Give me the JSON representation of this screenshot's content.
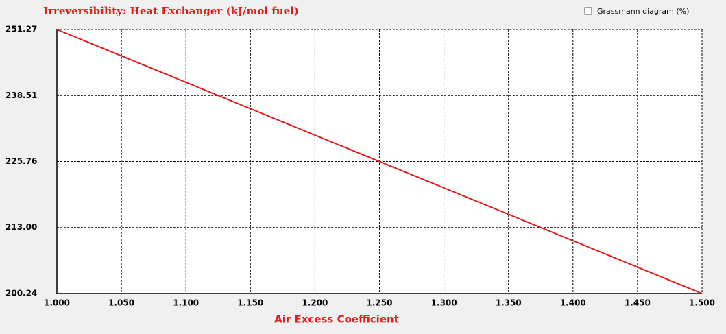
{
  "chart_data": {
    "type": "line",
    "title": "Irreversibility: Heat Exchanger (kJ/mol fuel)",
    "x_label": "Air Excess Coefficient",
    "x": [
      1.0,
      1.5
    ],
    "values": [
      251.27,
      200.24
    ],
    "color": "#e31b1b",
    "xlim": [
      1.0,
      1.5
    ],
    "ylim": [
      200.24,
      251.27
    ],
    "xticks": [
      {
        "value": 1.0,
        "label": "1.000"
      },
      {
        "value": 1.05,
        "label": "1.050"
      },
      {
        "value": 1.1,
        "label": "1.100"
      },
      {
        "value": 1.15,
        "label": "1.150"
      },
      {
        "value": 1.2,
        "label": "1.200"
      },
      {
        "value": 1.25,
        "label": "1.250"
      },
      {
        "value": 1.3,
        "label": "1.300"
      },
      {
        "value": 1.35,
        "label": "1.350"
      },
      {
        "value": 1.4,
        "label": "1.400"
      },
      {
        "value": 1.45,
        "label": "1.450"
      },
      {
        "value": 1.5,
        "label": "1.500"
      }
    ],
    "yticks": [
      200.24,
      {
        "value": 213.0,
        "label": "213.00"
      },
      225.76,
      238.51,
      251.27
    ],
    "grid": true
  },
  "controls": {
    "grassmann_checkbox": "Grassmann diagram (%)"
  }
}
